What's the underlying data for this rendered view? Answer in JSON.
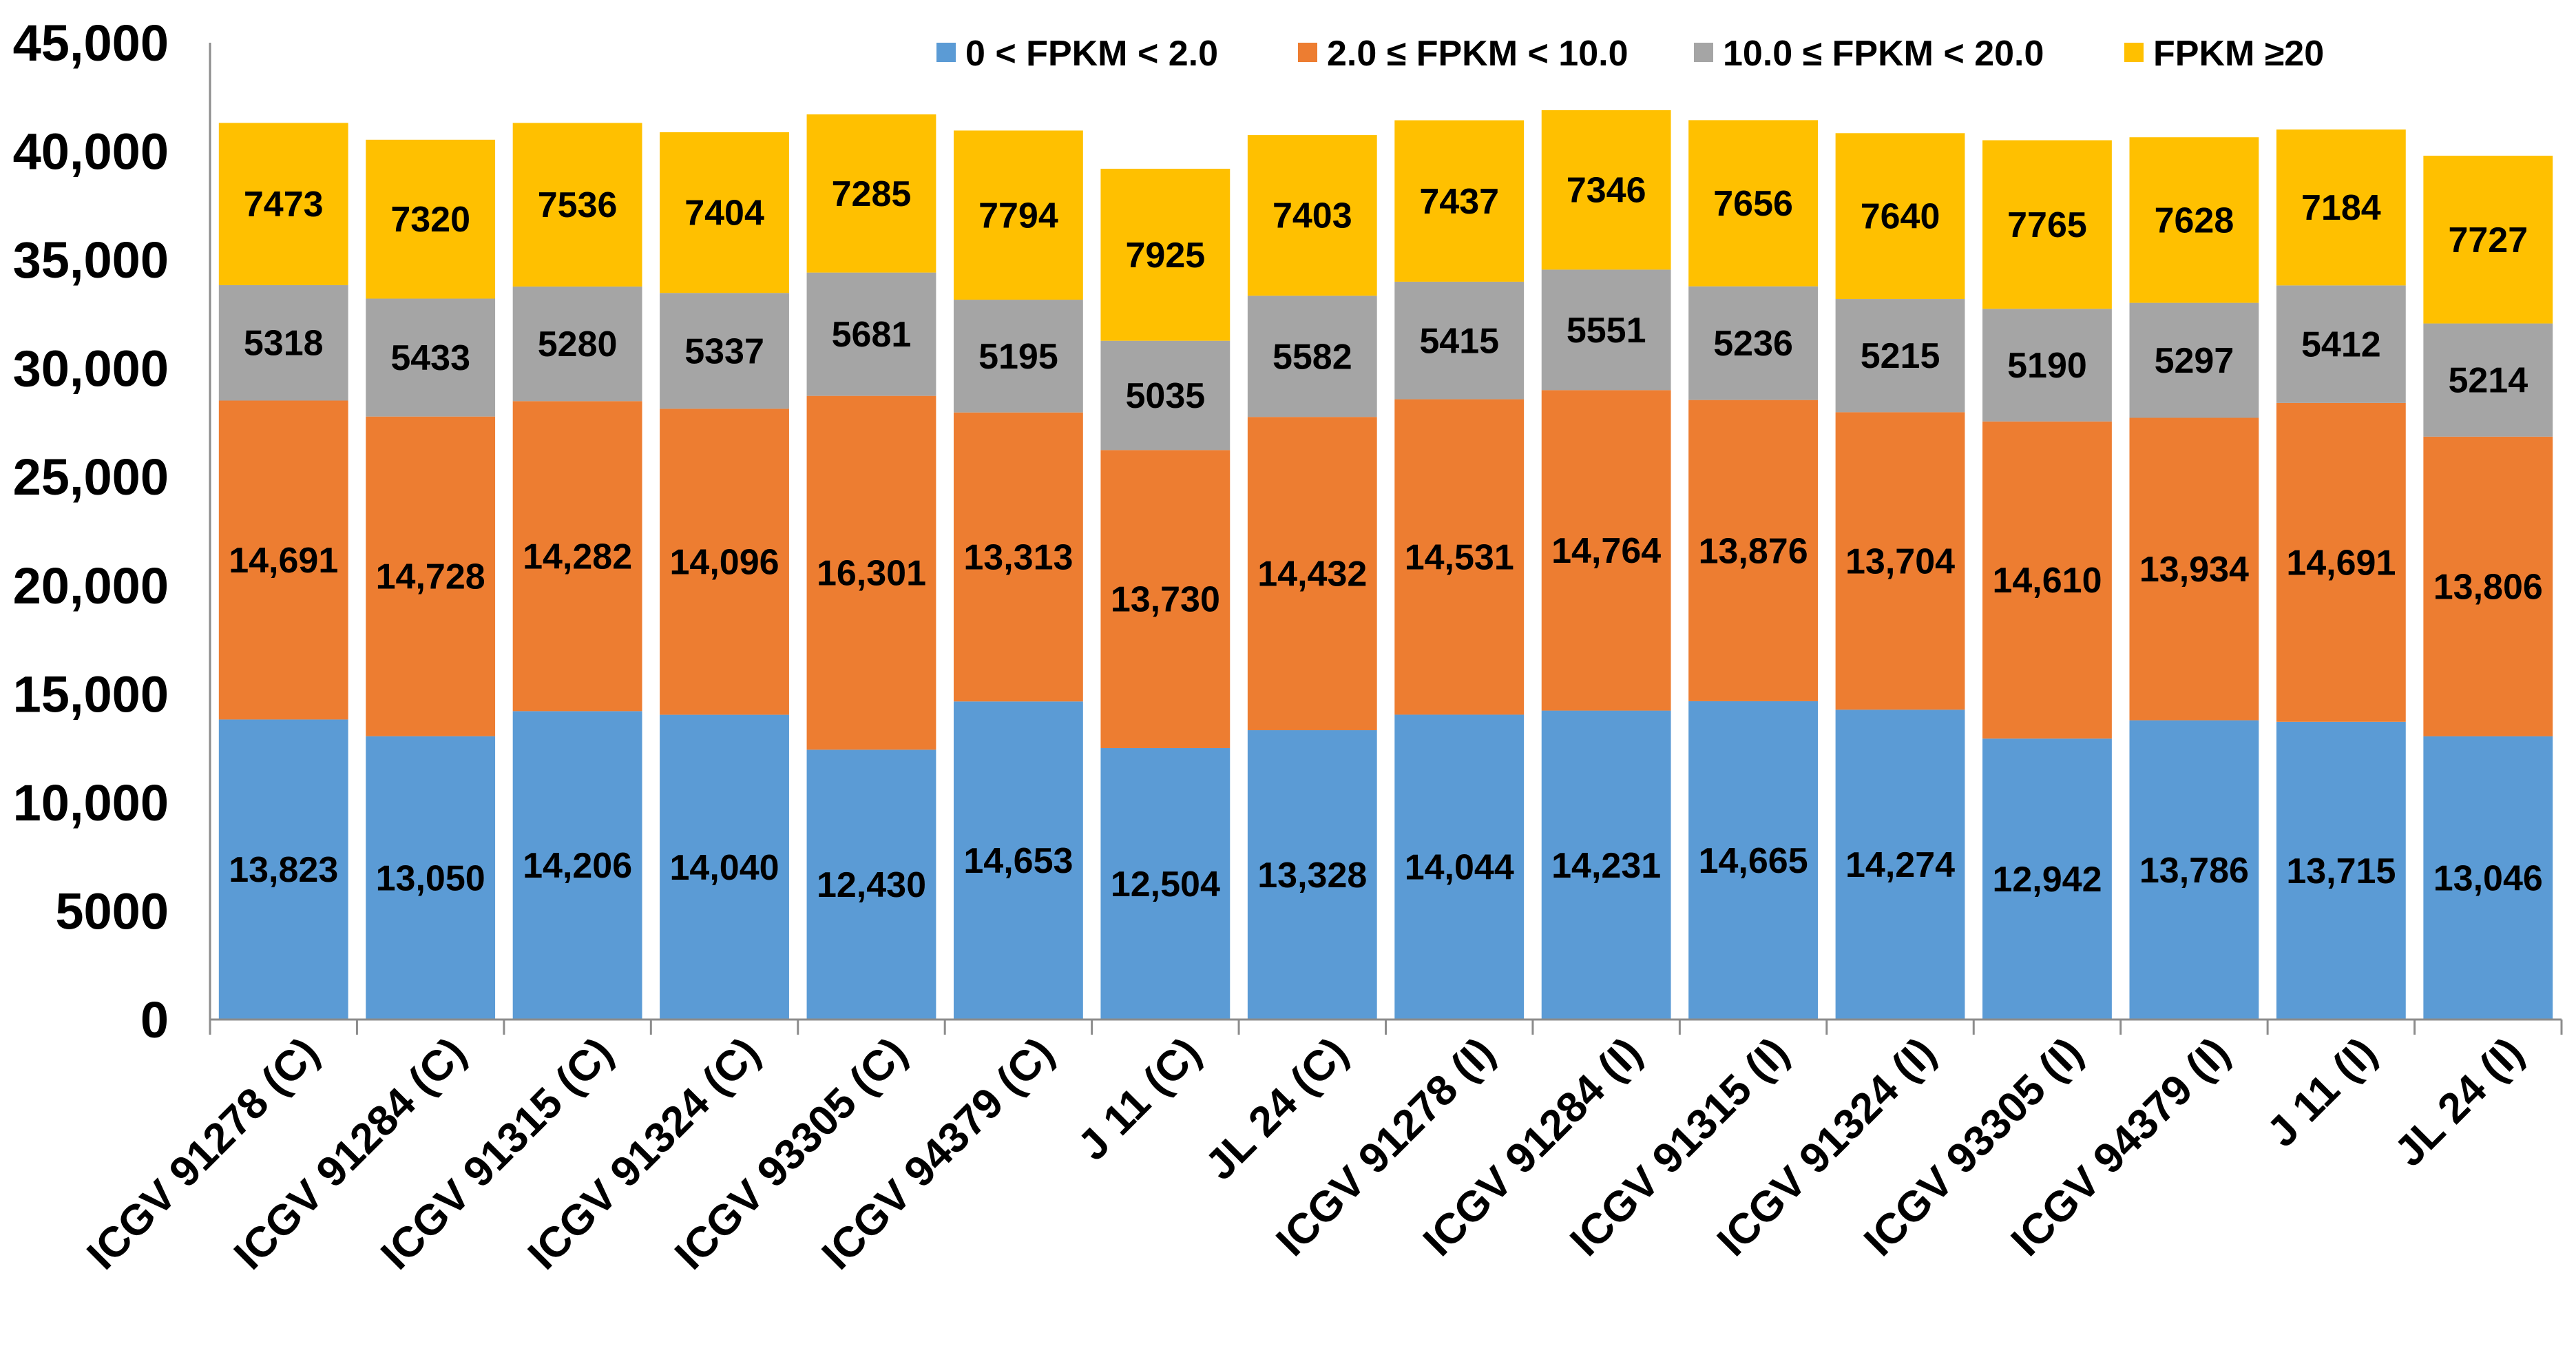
{
  "chart_data": {
    "type": "bar",
    "stacked": true,
    "title": "",
    "xlabel": "",
    "ylabel": "",
    "ylim": [
      0,
      45000
    ],
    "yticks": [
      0,
      5000,
      10000,
      15000,
      20000,
      25000,
      30000,
      35000,
      40000,
      45000
    ],
    "ytick_labels": [
      "0",
      "5000",
      "10,000",
      "15,000",
      "20,000",
      "25,000",
      "30,000",
      "35,000",
      "40,000",
      "45,000"
    ],
    "grid": false,
    "legend_position": "top-right",
    "categories": [
      "ICGV 91278 (C)",
      "ICGV 91284 (C)",
      "ICGV 91315 (C)",
      "ICGV 91324 (C)",
      "ICGV 93305 (C)",
      "ICGV 94379 (C)",
      "J 11 (C)",
      "JL 24 (C)",
      "ICGV 91278 (I)",
      "ICGV 91284 (I)",
      "ICGV 91315 (I)",
      "ICGV 91324 (I)",
      "ICGV 93305 (I)",
      "ICGV 94379 (I)",
      "J 11 (I)",
      "JL 24 (I)"
    ],
    "series": [
      {
        "name": "0 < FPKM < 2.0",
        "color": "#5B9BD5",
        "values": [
          13823,
          13050,
          14206,
          14040,
          12430,
          14653,
          12504,
          13328,
          14044,
          14231,
          14665,
          14274,
          12942,
          13786,
          13715,
          13046
        ],
        "labels": [
          "13,823",
          "13,050",
          "14,206",
          "14,040",
          "12,430",
          "14,653",
          "12,504",
          "13,328",
          "14,044",
          "14,231",
          "14,665",
          "14,274",
          "12,942",
          "13,786",
          "13,715",
          "13,046"
        ]
      },
      {
        "name": "2.0 ≤ FPKM < 10.0",
        "color": "#ED7D31",
        "values": [
          14691,
          14728,
          14282,
          14096,
          16301,
          13313,
          13730,
          14432,
          14531,
          14764,
          13876,
          13704,
          14610,
          13934,
          14691,
          13806
        ],
        "labels": [
          "14,691",
          "14,728",
          "14,282",
          "14,096",
          "16,301",
          "13,313",
          "13,730",
          "14,432",
          "14,531",
          "14,764",
          "13,876",
          "13,704",
          "14,610",
          "13,934",
          "14,691",
          "13,806"
        ]
      },
      {
        "name": "10.0 ≤ FPKM < 20.0",
        "color": "#A5A5A5",
        "values": [
          5318,
          5433,
          5280,
          5337,
          5681,
          5195,
          5035,
          5582,
          5415,
          5551,
          5236,
          5215,
          5190,
          5297,
          5412,
          5214
        ],
        "labels": [
          "5318",
          "5433",
          "5280",
          "5337",
          "5681",
          "5195",
          "5035",
          "5582",
          "5415",
          "5551",
          "5236",
          "5215",
          "5190",
          "5297",
          "5412",
          "5214"
        ]
      },
      {
        "name": "FPKM ≥20",
        "color": "#FFC000",
        "values": [
          7473,
          7320,
          7536,
          7404,
          7285,
          7794,
          7925,
          7403,
          7437,
          7346,
          7656,
          7640,
          7765,
          7628,
          7184,
          7727
        ],
        "labels": [
          "7473",
          "7320",
          "7536",
          "7404",
          "7285",
          "7794",
          "7925",
          "7403",
          "7437",
          "7346",
          "7656",
          "7640",
          "7765",
          "7628",
          "7184",
          "7727"
        ]
      }
    ]
  }
}
